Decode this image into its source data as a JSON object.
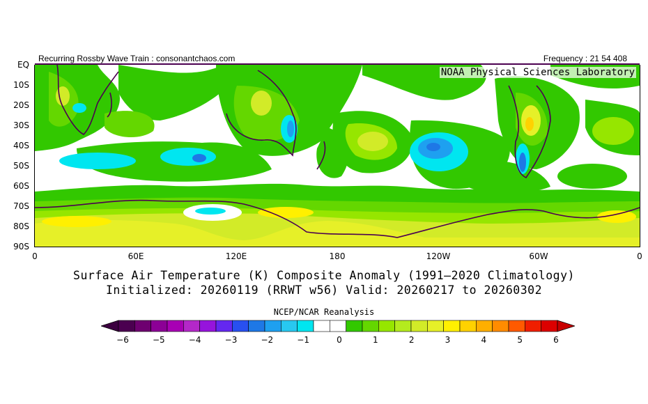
{
  "header": {
    "left": "Recurring Rossby Wave Train : consonantchaos.com",
    "right": "Frequency : 21 54 408",
    "lab": "NOAA Physical Sciences Laboratory"
  },
  "axes": {
    "lat_labels": [
      "EQ",
      "10S",
      "20S",
      "30S",
      "40S",
      "50S",
      "60S",
      "70S",
      "80S",
      "90S"
    ],
    "lon_labels": [
      "0",
      "60E",
      "120E",
      "180",
      "120W",
      "60W",
      "0"
    ]
  },
  "title": "Surface Air Temperature (K) Composite Anomaly (1991–2020 Climatology)",
  "subtitle": "Initialized: 20260119 (RRWT w56) Valid: 20260217 to 20260302",
  "source": "NCEP/NCAR Reanalysis",
  "colorbar": {
    "ticks": [
      "−6",
      "−5",
      "−4",
      "−3",
      "−2",
      "−1",
      "0",
      "1",
      "2",
      "3",
      "4",
      "5",
      "6"
    ],
    "colors": [
      "#4b0050",
      "#6e0070",
      "#8c0096",
      "#a800b4",
      "#b428c8",
      "#9614dc",
      "#6428f0",
      "#2850f0",
      "#1e78e6",
      "#1ea0f0",
      "#28c8f0",
      "#00e6f0",
      "#ffffff",
      "#ffffff",
      "#32c800",
      "#64d700",
      "#96e600",
      "#b4eb1e",
      "#d2eb28",
      "#e6f028",
      "#fff000",
      "#ffd200",
      "#ffaf00",
      "#ff8c00",
      "#ff5a00",
      "#f01e00",
      "#dc0000"
    ],
    "left_color": "#3c0040",
    "right_color": "#c80000"
  },
  "map_colors": {
    "ocean": "#ffffff",
    "green1": "#32c800",
    "green2": "#64d700",
    "green3": "#96e600",
    "yellow1": "#d2eb28",
    "yellow2": "#e6f028",
    "yellow3": "#fff000",
    "orange1": "#ffd200",
    "cyan1": "#00e6f0",
    "cyan2": "#28c8f0",
    "blue1": "#1ea0f0",
    "blue2": "#1e78e6",
    "coast": "#4b0050"
  }
}
